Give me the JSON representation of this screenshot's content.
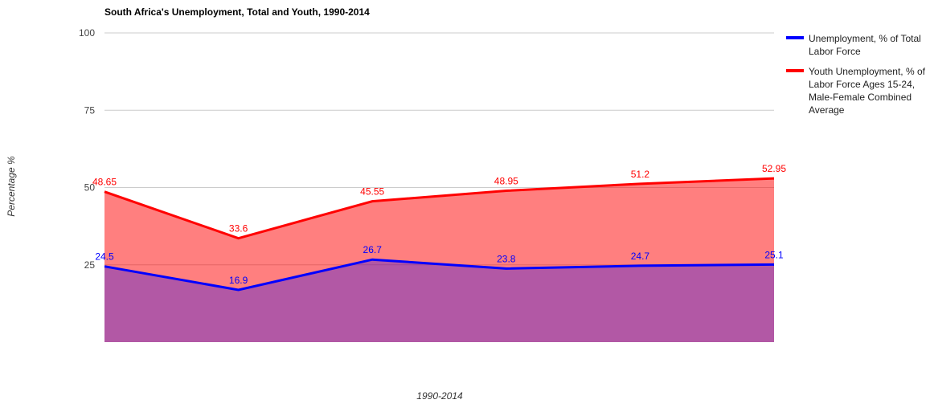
{
  "chart_data": {
    "type": "area",
    "title": "South Africa's Unemployment, Total and Youth, 1990-2014",
    "x_label": "1990-2014",
    "y_label": "Percentage %",
    "categories": [
      null,
      null,
      null,
      null,
      null,
      null
    ],
    "series": [
      {
        "name": "Youth Unemployment, % of Labor Force Ages 15-24, Male-Female Combined Average",
        "color": "#ff0000",
        "values": [
          48.65,
          33.6,
          45.55,
          48.95,
          51.2,
          52.95
        ]
      },
      {
        "name": "Unemployment, % of Total Labor Force",
        "color": "#0000ff",
        "values": [
          24.5,
          16.9,
          26.7,
          23.8,
          24.7,
          25.1
        ]
      }
    ],
    "ylim": [
      0,
      100
    ],
    "yticks": [
      25,
      50,
      75,
      100
    ],
    "grid": true,
    "legend": "right"
  }
}
